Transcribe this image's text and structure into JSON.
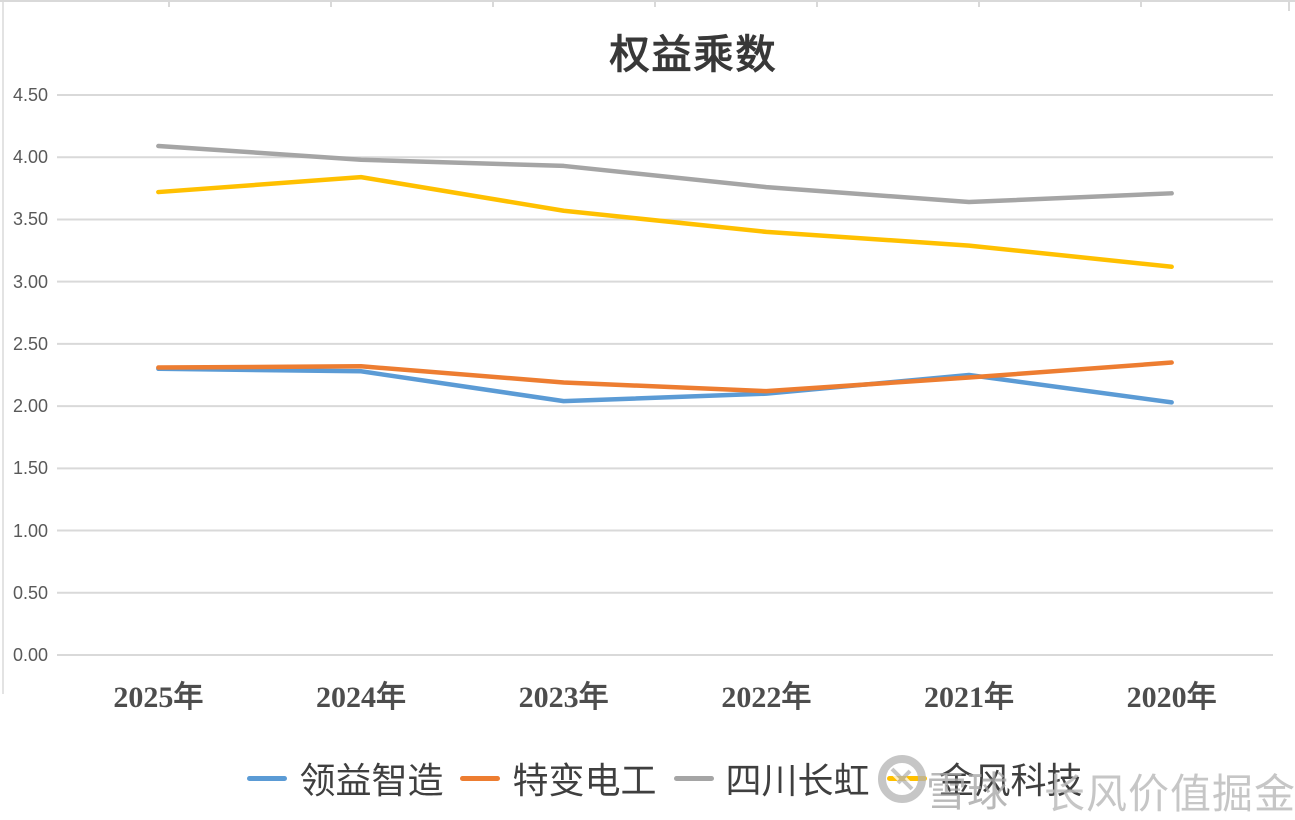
{
  "chart": {
    "title": "权益乘数"
  },
  "chart_data": {
    "type": "line",
    "title": "权益乘数",
    "categories": [
      "2025年",
      "2024年",
      "2023年",
      "2022年",
      "2021年",
      "2020年"
    ],
    "series": [
      {
        "name": "领益智造",
        "color": "#5B9BD5",
        "values": [
          2.3,
          2.28,
          2.04,
          2.1,
          2.25,
          2.03
        ]
      },
      {
        "name": "特变电工",
        "color": "#ED7D31",
        "values": [
          2.31,
          2.32,
          2.19,
          2.12,
          2.23,
          2.35
        ]
      },
      {
        "name": "四川长虹",
        "color": "#A5A5A5",
        "values": [
          4.09,
          3.98,
          3.93,
          3.76,
          3.64,
          3.71
        ]
      },
      {
        "name": "金风科技",
        "color": "#FFC000",
        "values": [
          3.72,
          3.84,
          3.57,
          3.4,
          3.29,
          3.12
        ]
      }
    ],
    "xlabel": "",
    "ylabel": "",
    "ylim": [
      0.0,
      4.5
    ],
    "y_ticks": [
      "0.00",
      "0.50",
      "1.00",
      "1.50",
      "2.00",
      "2.50",
      "3.00",
      "3.50",
      "4.00",
      "4.50"
    ],
    "grid": "horizontal",
    "gridline_color": "#D9D9D9",
    "legend_position": "bottom"
  },
  "watermark": {
    "logo": "xueqiu-logo",
    "brand": "雪球",
    "account": "长风价值掘金"
  }
}
